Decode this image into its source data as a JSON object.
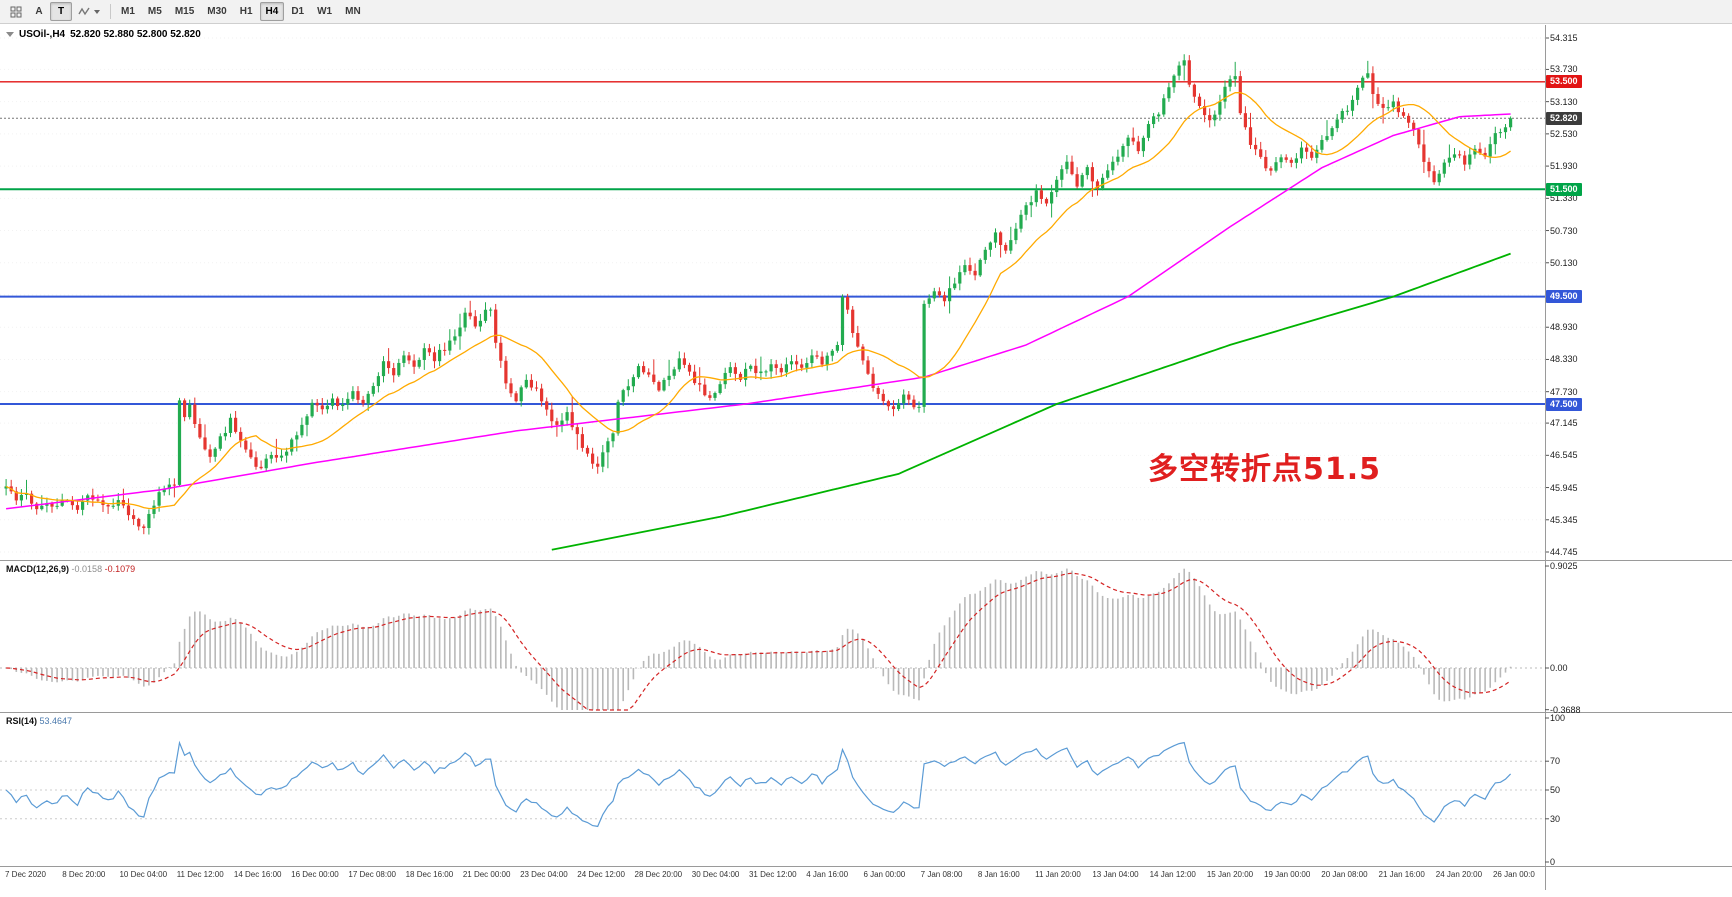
{
  "toolbar": {
    "tools": [
      {
        "name": "cursor-tool",
        "label": "A"
      },
      {
        "name": "text-tool",
        "label": "T"
      }
    ],
    "timeframes": [
      {
        "label": "M1",
        "active": false
      },
      {
        "label": "M5",
        "active": false
      },
      {
        "label": "M15",
        "active": false
      },
      {
        "label": "M30",
        "active": false
      },
      {
        "label": "H1",
        "active": false
      },
      {
        "label": "H4",
        "active": true
      },
      {
        "label": "D1",
        "active": false
      },
      {
        "label": "W1",
        "active": false
      },
      {
        "label": "MN",
        "active": false
      }
    ]
  },
  "chart_visual": {
    "title_symbol": "USOil-,H4",
    "title_ohlc": "52.820 52.880 52.800 52.820",
    "annotation": {
      "text": "多空转折点51.5",
      "color": "#e01f1f"
    },
    "y_axis_labels": [
      "54.315",
      "53.730",
      "53.130",
      "52.530",
      "51.930",
      "51.330",
      "50.730",
      "50.130",
      "49.530",
      "48.930",
      "48.330",
      "47.730",
      "47.145",
      "46.545",
      "45.945",
      "45.345",
      "44.745"
    ],
    "price_lines": [
      {
        "price": 53.5,
        "label": "53.500",
        "color": "#e21414",
        "width": 1.4,
        "dash": ""
      },
      {
        "price": 52.82,
        "label": "52.820",
        "color": "#777777",
        "tag_color": "#3c3c3c",
        "width": 1,
        "dash": "2 2"
      },
      {
        "price": 51.5,
        "label": "51.500",
        "color": "#00a448",
        "width": 2,
        "dash": ""
      },
      {
        "price": 49.5,
        "label": "49.500",
        "color": "#3357d8",
        "width": 2,
        "dash": ""
      },
      {
        "price": 47.5,
        "label": "47.500",
        "color": "#3357d8",
        "width": 2,
        "dash": ""
      }
    ],
    "colors": {
      "candle_up": "#22ab4f",
      "candle_down": "#e53530",
      "ma_fast": "#ffaa00",
      "ma_mid": "#ff00ff",
      "ma_slow": "#00b300",
      "macd_hist": "#b9b9b9",
      "macd_signal": "#d42424",
      "rsi_line": "#5b9bd5"
    }
  },
  "macd_panel": {
    "name": "MACD(12,26,9)",
    "value_main": "-0.0158",
    "value_signal": "-0.1079",
    "axis_labels": [
      "0.9025",
      "0.00",
      "-0.3688"
    ]
  },
  "rsi_panel": {
    "name": "RSI(14)",
    "value": "53.4647",
    "axis_labels": [
      "100",
      "70",
      "50",
      "30",
      "0"
    ],
    "levels": [
      70,
      50,
      30
    ]
  },
  "time_axis": {
    "labels": [
      "7 Dec 2020",
      "8 Dec 20:00",
      "10 Dec 04:00",
      "11 Dec 12:00",
      "14 Dec 16:00",
      "16 Dec 00:00",
      "17 Dec 08:00",
      "18 Dec 16:00",
      "21 Dec 00:00",
      "23 Dec 04:00",
      "24 Dec 12:00",
      "28 Dec 20:00",
      "30 Dec 04:00",
      "31 Dec 12:00",
      "4 Jan 16:00",
      "6 Jan 00:00",
      "7 Jan 08:00",
      "8 Jan 16:00",
      "11 Jan 20:00",
      "13 Jan 04:00",
      "14 Jan 12:00",
      "15 Jan 20:00",
      "19 Jan 00:00",
      "20 Jan 08:00",
      "21 Jan 16:00",
      "24 Jan 20:00",
      "26 Jan 00:0"
    ]
  },
  "chart_data": {
    "type": "candlestick",
    "symbol": "USOil-",
    "timeframe": "H4",
    "ohlc_current": {
      "open": 52.82,
      "high": 52.88,
      "low": 52.8,
      "close": 52.82
    },
    "y_range": [
      44.745,
      54.315
    ],
    "candle_count": 296,
    "horizontal_levels": [
      53.5,
      51.5,
      49.5,
      47.5
    ],
    "close_path_anchors": [
      [
        0,
        45.95
      ],
      [
        2,
        45.7
      ],
      [
        4,
        45.85
      ],
      [
        6,
        45.55
      ],
      [
        8,
        45.7
      ],
      [
        10,
        45.6
      ],
      [
        12,
        45.75
      ],
      [
        14,
        45.5
      ],
      [
        16,
        45.85
      ],
      [
        18,
        45.7
      ],
      [
        20,
        45.55
      ],
      [
        22,
        45.75
      ],
      [
        24,
        45.45
      ],
      [
        26,
        45.25
      ],
      [
        27,
        45.18
      ],
      [
        28,
        45.5
      ],
      [
        30,
        45.8
      ],
      [
        32,
        46.0
      ],
      [
        33,
        46.05
      ],
      [
        34,
        47.55
      ],
      [
        35,
        47.3
      ],
      [
        36,
        47.45
      ],
      [
        38,
        46.9
      ],
      [
        40,
        46.5
      ],
      [
        42,
        46.85
      ],
      [
        44,
        47.2
      ],
      [
        46,
        46.85
      ],
      [
        48,
        46.5
      ],
      [
        50,
        46.25
      ],
      [
        52,
        46.6
      ],
      [
        54,
        46.5
      ],
      [
        56,
        46.8
      ],
      [
        58,
        47.1
      ],
      [
        60,
        47.5
      ],
      [
        62,
        47.35
      ],
      [
        64,
        47.6
      ],
      [
        66,
        47.45
      ],
      [
        68,
        47.7
      ],
      [
        70,
        47.5
      ],
      [
        72,
        47.85
      ],
      [
        74,
        48.25
      ],
      [
        76,
        48.1
      ],
      [
        78,
        48.4
      ],
      [
        80,
        48.25
      ],
      [
        82,
        48.5
      ],
      [
        84,
        48.35
      ],
      [
        86,
        48.55
      ],
      [
        88,
        48.8
      ],
      [
        90,
        49.15
      ],
      [
        92,
        49.0
      ],
      [
        94,
        49.2
      ],
      [
        95,
        49.25
      ],
      [
        96,
        48.7
      ],
      [
        98,
        47.9
      ],
      [
        100,
        47.6
      ],
      [
        102,
        47.95
      ],
      [
        104,
        47.75
      ],
      [
        106,
        47.35
      ],
      [
        108,
        47.05
      ],
      [
        110,
        47.3
      ],
      [
        112,
        46.9
      ],
      [
        114,
        46.55
      ],
      [
        116,
        46.3
      ],
      [
        118,
        46.8
      ],
      [
        119,
        47.0
      ],
      [
        120,
        47.55
      ],
      [
        122,
        47.85
      ],
      [
        124,
        48.15
      ],
      [
        126,
        48.0
      ],
      [
        128,
        47.8
      ],
      [
        130,
        48.05
      ],
      [
        132,
        48.3
      ],
      [
        134,
        48.05
      ],
      [
        136,
        47.8
      ],
      [
        138,
        47.6
      ],
      [
        140,
        47.9
      ],
      [
        142,
        48.15
      ],
      [
        144,
        48.0
      ],
      [
        146,
        48.2
      ],
      [
        148,
        48.05
      ],
      [
        150,
        48.25
      ],
      [
        152,
        48.15
      ],
      [
        154,
        48.35
      ],
      [
        156,
        48.2
      ],
      [
        158,
        48.4
      ],
      [
        160,
        48.25
      ],
      [
        162,
        48.5
      ],
      [
        163,
        48.6
      ],
      [
        164,
        49.5
      ],
      [
        165,
        49.3
      ],
      [
        166,
        48.85
      ],
      [
        168,
        48.35
      ],
      [
        170,
        47.85
      ],
      [
        172,
        47.5
      ],
      [
        174,
        47.4
      ],
      [
        176,
        47.65
      ],
      [
        178,
        47.45
      ],
      [
        179,
        47.5
      ],
      [
        180,
        49.3
      ],
      [
        182,
        49.6
      ],
      [
        184,
        49.45
      ],
      [
        186,
        49.8
      ],
      [
        188,
        50.15
      ],
      [
        190,
        49.9
      ],
      [
        192,
        50.35
      ],
      [
        194,
        50.65
      ],
      [
        196,
        50.4
      ],
      [
        198,
        50.8
      ],
      [
        200,
        51.15
      ],
      [
        202,
        51.45
      ],
      [
        204,
        51.2
      ],
      [
        206,
        51.65
      ],
      [
        208,
        52.0
      ],
      [
        210,
        51.6
      ],
      [
        212,
        51.85
      ],
      [
        214,
        51.55
      ],
      [
        216,
        51.8
      ],
      [
        218,
        52.15
      ],
      [
        220,
        52.45
      ],
      [
        222,
        52.25
      ],
      [
        224,
        52.65
      ],
      [
        226,
        52.95
      ],
      [
        228,
        53.35
      ],
      [
        230,
        53.75
      ],
      [
        231,
        53.85
      ],
      [
        232,
        53.45
      ],
      [
        234,
        53.05
      ],
      [
        236,
        52.75
      ],
      [
        238,
        53.15
      ],
      [
        240,
        53.6
      ],
      [
        241,
        53.65
      ],
      [
        242,
        52.95
      ],
      [
        244,
        52.35
      ],
      [
        246,
        52.05
      ],
      [
        248,
        51.85
      ],
      [
        250,
        52.15
      ],
      [
        252,
        51.95
      ],
      [
        254,
        52.25
      ],
      [
        256,
        52.1
      ],
      [
        258,
        52.4
      ],
      [
        260,
        52.65
      ],
      [
        262,
        52.9
      ],
      [
        264,
        53.15
      ],
      [
        266,
        53.55
      ],
      [
        267,
        53.6
      ],
      [
        268,
        53.25
      ],
      [
        270,
        52.95
      ],
      [
        272,
        53.1
      ],
      [
        274,
        52.85
      ],
      [
        276,
        52.6
      ],
      [
        278,
        51.95
      ],
      [
        280,
        51.65
      ],
      [
        282,
        51.95
      ],
      [
        284,
        52.2
      ],
      [
        286,
        52.0
      ],
      [
        288,
        52.3
      ],
      [
        290,
        52.1
      ],
      [
        292,
        52.5
      ],
      [
        294,
        52.7
      ],
      [
        295,
        52.82
      ]
    ],
    "ma_mid_anchors": [
      [
        0,
        45.55
      ],
      [
        30,
        45.9
      ],
      [
        60,
        46.4
      ],
      [
        100,
        47.0
      ],
      [
        145,
        47.5
      ],
      [
        180,
        48.0
      ],
      [
        200,
        48.6
      ],
      [
        220,
        49.5
      ],
      [
        240,
        50.8
      ],
      [
        258,
        51.9
      ],
      [
        272,
        52.5
      ],
      [
        285,
        52.85
      ],
      [
        295,
        52.9
      ]
    ],
    "ma_slow_anchors": [
      [
        100,
        44.6
      ],
      [
        105,
        44.75
      ],
      [
        140,
        45.4
      ],
      [
        175,
        46.2
      ],
      [
        206,
        47.5
      ],
      [
        240,
        48.6
      ],
      [
        272,
        49.5
      ],
      [
        295,
        50.3
      ]
    ],
    "macd": {
      "params": "12,26,9",
      "current_main": -0.0158,
      "current_signal": -0.1079,
      "y_range": [
        -0.3688,
        0.9025
      ]
    },
    "rsi": {
      "period": 14,
      "current": 53.4647,
      "levels": [
        30,
        50,
        70
      ],
      "y_range": [
        0,
        100
      ]
    }
  }
}
